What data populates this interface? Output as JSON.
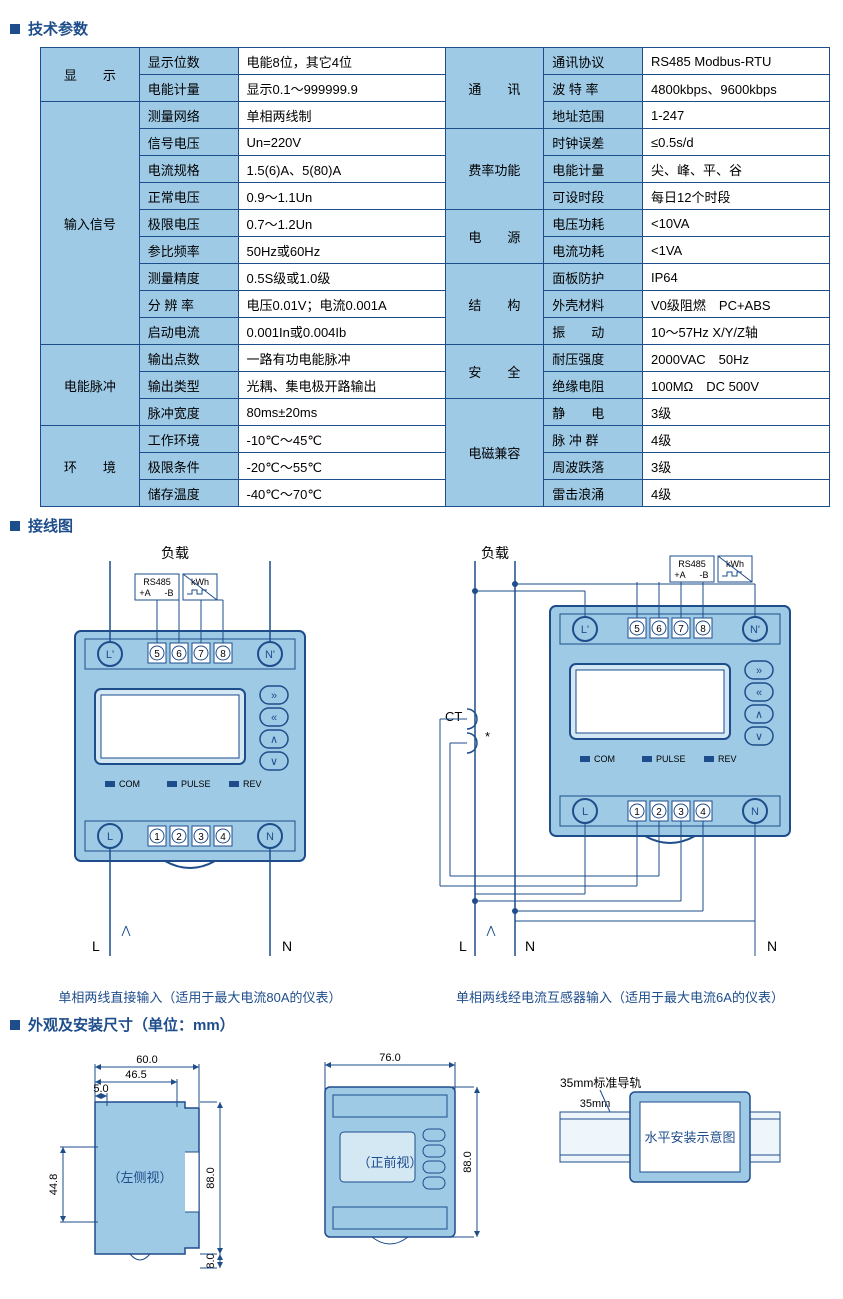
{
  "sections": {
    "params_title": "技术参数",
    "wiring_title": "接线图",
    "dims_title": "外观及安装尺寸（单位：mm）"
  },
  "colors": {
    "accent": "#1e4d8b",
    "cell_header_bg": "#9ecae6",
    "cell_border": "#1e4d8b",
    "device_body": "#9ecae6",
    "device_stroke": "#1e4d8b",
    "screen_bg": "#d4e8f4",
    "line": "#1e4d8b"
  },
  "params": {
    "left_groups": [
      {
        "group": "显　　示",
        "rows": [
          {
            "k": "显示位数",
            "v": "电能8位，其它4位"
          },
          {
            "k": "电能计量",
            "v": "显示0.1～999999.9"
          }
        ]
      },
      {
        "group": "输入信号",
        "rows": [
          {
            "k": "测量网络",
            "v": "单相两线制"
          },
          {
            "k": "信号电压",
            "v": "Un=220V"
          },
          {
            "k": "电流规格",
            "v": "1.5(6)A、5(80)A"
          },
          {
            "k": "正常电压",
            "v": "0.9～1.1Un"
          },
          {
            "k": "极限电压",
            "v": "0.7～1.2Un"
          },
          {
            "k": "参比频率",
            "v": "50Hz或60Hz"
          },
          {
            "k": "测量精度",
            "v": "0.5S级或1.0级"
          },
          {
            "k": "分 辨 率",
            "v": "电压0.01V；电流0.001A"
          },
          {
            "k": "启动电流",
            "v": "0.001In或0.004Ib"
          }
        ]
      },
      {
        "group": "电能脉冲",
        "rows": [
          {
            "k": "输出点数",
            "v": "一路有功电能脉冲"
          },
          {
            "k": "输出类型",
            "v": "光耦、集电极开路输出"
          },
          {
            "k": "脉冲宽度",
            "v": "80ms±20ms"
          }
        ]
      },
      {
        "group": "环　　境",
        "rows": [
          {
            "k": "工作环境",
            "v": "-10℃～45℃"
          },
          {
            "k": "极限条件",
            "v": "-20℃～55℃"
          },
          {
            "k": "储存温度",
            "v": "-40℃～70℃"
          }
        ]
      }
    ],
    "right_groups": [
      {
        "group": "通　　讯",
        "rows": [
          {
            "k": "通讯协议",
            "v": "RS485 Modbus-RTU"
          },
          {
            "k": "波 特 率",
            "v": "4800kbps、9600kbps"
          },
          {
            "k": "地址范围",
            "v": "1-247"
          }
        ]
      },
      {
        "group": "费率功能",
        "rows": [
          {
            "k": "时钟误差",
            "v": "≤0.5s/d"
          },
          {
            "k": "电能计量",
            "v": "尖、峰、平、谷"
          },
          {
            "k": "可设时段",
            "v": "每日12个时段"
          }
        ]
      },
      {
        "group": "电　　源",
        "rows": [
          {
            "k": "电压功耗",
            "v": "<10VA"
          },
          {
            "k": "电流功耗",
            "v": "<1VA"
          }
        ]
      },
      {
        "group": "结　　构",
        "rows": [
          {
            "k": "面板防护",
            "v": "IP64"
          },
          {
            "k": "外壳材料",
            "v": "V0级阻燃　PC+ABS"
          },
          {
            "k": "振　　动",
            "v": "10～57Hz X/Y/Z轴"
          }
        ]
      },
      {
        "group": "安　　全",
        "rows": [
          {
            "k": "耐压强度",
            "v": "2000VAC　50Hz"
          },
          {
            "k": "绝缘电阻",
            "v": "100MΩ　DC 500V"
          }
        ]
      },
      {
        "group": "电磁兼容",
        "rows": [
          {
            "k": "静　　电",
            "v": "3级"
          },
          {
            "k": "脉 冲 群",
            "v": "4级"
          },
          {
            "k": "周波跌落",
            "v": "3级"
          },
          {
            "k": "雷击浪涌",
            "v": "4级"
          }
        ]
      }
    ]
  },
  "wiring": {
    "load_label": "负载",
    "rs485_label": "RS485",
    "rs485_a": "+A",
    "rs485_b": "-B",
    "kwh_label": "kWh",
    "top_terminals": [
      "5",
      "6",
      "7",
      "8"
    ],
    "bot_terminals": [
      "1",
      "2",
      "3",
      "4"
    ],
    "L_prime": "L'",
    "N_prime": "N'",
    "L": "L",
    "N": "N",
    "leds": [
      "COM",
      "PULSE",
      "REV"
    ],
    "ct_label": "CT",
    "star": "*",
    "caption_left": "单相两线直接输入（适用于最大电流80A的仪表）",
    "caption_right": "单相两线经电流互感器输入（适用于最大电流6A的仪表）"
  },
  "dims": {
    "w60": "60.0",
    "w46_5": "46.5",
    "w5": "5.0",
    "h44_8": "44.8",
    "h88": "88.0",
    "h8": "8.0",
    "w76": "76.0",
    "rail": "35mm标准导轨",
    "left_view": "（左侧视）",
    "front_view": "（正前视）",
    "mount_view": "水平安装示意图"
  }
}
